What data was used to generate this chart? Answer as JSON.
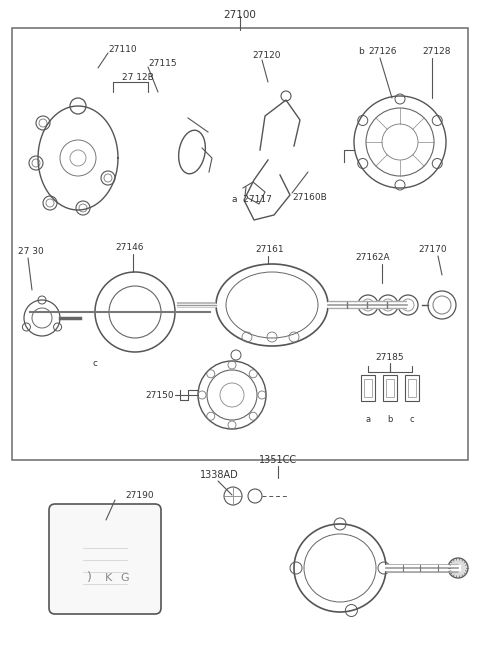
{
  "title": "27100",
  "bg_color": "#ffffff",
  "border_color": "#555555",
  "text_color": "#333333",
  "fig_width": 4.8,
  "fig_height": 6.57,
  "dpi": 100,
  "labels": {
    "main": "27100",
    "p27110": "27110",
    "p27115": "27115",
    "p2712B": "27 12B",
    "p27120": "27120",
    "p27117a": "a  27117",
    "p27160B": "27160B",
    "p27126": "27126",
    "p27128": "27128",
    "p27126b": "b",
    "p2730": "27 30",
    "p27146": "27146",
    "p27161": "27161",
    "p27162A": "27162A",
    "p27170": "27170",
    "p27150": "27150",
    "p27185": "27185",
    "p27190": "27190",
    "p1351CC": "1351CC",
    "p1338AD": "1338AD"
  }
}
